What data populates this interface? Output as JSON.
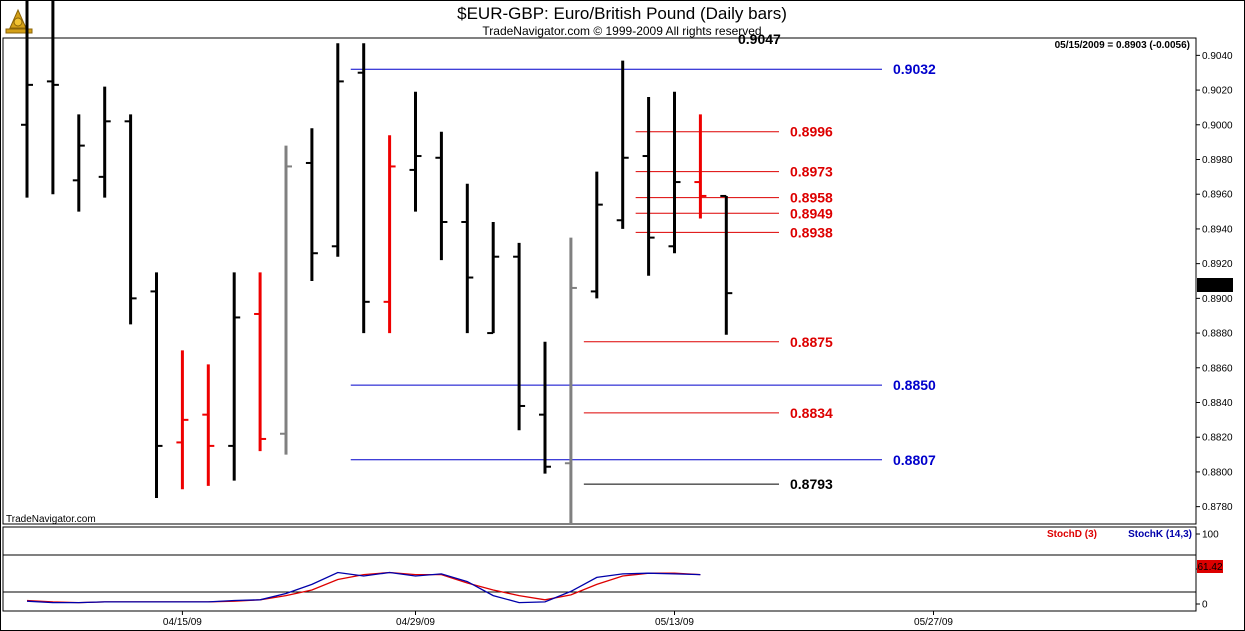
{
  "header": {
    "title": "$EUR-GBP:  Euro/British Pound  (Daily bars)",
    "subtitle": "TradeNavigator.com © 1999-2009 All rights reserved",
    "date_readout": "05/15/2009 = 0.8903 (-0.0056)",
    "watermark": "TradeNavigator.com",
    "cut_off_label": "0.9047"
  },
  "colors": {
    "up": "#000000",
    "down": "#ee0000",
    "neutral": "#808080",
    "blue_level": "#0000cc",
    "red_level": "#dd0000",
    "black_level": "#000000",
    "stochD": "#dd0000",
    "stochK": "#0000aa"
  },
  "chart_data": [
    {
      "type": "bar",
      "subtype": "ohlc",
      "title": "$EUR-GBP:  Euro/British Pound  (Daily bars)",
      "ylim": [
        0.877,
        0.905
      ],
      "y_ticks": [
        "0.9040",
        "0.9020",
        "0.9000",
        "0.8980",
        "0.8960",
        "0.8940",
        "0.8920",
        "0.8900",
        "0.8880",
        "0.8860",
        "0.8840",
        "0.8820",
        "0.8800",
        "0.8780"
      ],
      "x_ticks": [
        {
          "label": "04/15/09",
          "bar": 6
        },
        {
          "label": "04/29/09",
          "bar": 15
        },
        {
          "label": "05/13/09",
          "bar": 25
        },
        {
          "label": "05/27/09",
          "bar": 35
        }
      ],
      "last_value_label": "0.8903",
      "bars": [
        {
          "o": 0.9,
          "h": 0.9072,
          "l": 0.8958,
          "c": 0.9023,
          "color": "up"
        },
        {
          "o": 0.9025,
          "h": 0.9072,
          "l": 0.896,
          "c": 0.9023,
          "color": "up"
        },
        {
          "o": 0.8968,
          "h": 0.9006,
          "l": 0.895,
          "c": 0.8988,
          "color": "up"
        },
        {
          "o": 0.897,
          "h": 0.9022,
          "l": 0.8958,
          "c": 0.9002,
          "color": "up"
        },
        {
          "o": 0.9002,
          "h": 0.9006,
          "l": 0.8885,
          "c": 0.89,
          "color": "up"
        },
        {
          "o": 0.8904,
          "h": 0.8915,
          "l": 0.8785,
          "c": 0.8815,
          "color": "up"
        },
        {
          "o": 0.8817,
          "h": 0.887,
          "l": 0.879,
          "c": 0.883,
          "color": "down"
        },
        {
          "o": 0.8833,
          "h": 0.8862,
          "l": 0.8792,
          "c": 0.8815,
          "color": "down"
        },
        {
          "o": 0.8815,
          "h": 0.8915,
          "l": 0.8795,
          "c": 0.8889,
          "color": "up"
        },
        {
          "o": 0.8891,
          "h": 0.8915,
          "l": 0.8812,
          "c": 0.8819,
          "color": "down"
        },
        {
          "o": 0.8822,
          "h": 0.8988,
          "l": 0.881,
          "c": 0.8976,
          "color": "neutral"
        },
        {
          "o": 0.8978,
          "h": 0.8998,
          "l": 0.891,
          "c": 0.8926,
          "color": "up"
        },
        {
          "o": 0.893,
          "h": 0.9047,
          "l": 0.8924,
          "c": 0.9025,
          "color": "up"
        },
        {
          "o": 0.903,
          "h": 0.9047,
          "l": 0.888,
          "c": 0.8898,
          "color": "up"
        },
        {
          "o": 0.8898,
          "h": 0.8994,
          "l": 0.888,
          "c": 0.8976,
          "color": "down"
        },
        {
          "o": 0.8974,
          "h": 0.9019,
          "l": 0.895,
          "c": 0.8982,
          "color": "up"
        },
        {
          "o": 0.8981,
          "h": 0.8996,
          "l": 0.8922,
          "c": 0.8944,
          "color": "up"
        },
        {
          "o": 0.8944,
          "h": 0.8966,
          "l": 0.888,
          "c": 0.8912,
          "color": "up"
        },
        {
          "o": 0.888,
          "h": 0.8944,
          "l": 0.888,
          "c": 0.8924,
          "color": "up"
        },
        {
          "o": 0.8924,
          "h": 0.8932,
          "l": 0.8824,
          "c": 0.8838,
          "color": "up"
        },
        {
          "o": 0.8833,
          "h": 0.8875,
          "l": 0.8799,
          "c": 0.8803,
          "color": "up"
        },
        {
          "o": 0.8805,
          "h": 0.8935,
          "l": 0.877,
          "c": 0.8906,
          "color": "neutral"
        },
        {
          "o": 0.8904,
          "h": 0.8973,
          "l": 0.89,
          "c": 0.8954,
          "color": "up"
        },
        {
          "o": 0.8945,
          "h": 0.9037,
          "l": 0.894,
          "c": 0.8981,
          "color": "up"
        },
        {
          "o": 0.8982,
          "h": 0.9016,
          "l": 0.8913,
          "c": 0.8935,
          "color": "up"
        },
        {
          "o": 0.893,
          "h": 0.9019,
          "l": 0.8926,
          "c": 0.8967,
          "color": "up"
        },
        {
          "o": 0.8967,
          "h": 0.9006,
          "l": 0.8946,
          "c": 0.8959,
          "color": "down"
        },
        {
          "o": 0.8959,
          "h": 0.8959,
          "l": 0.8879,
          "c": 0.8903,
          "color": "up"
        }
      ],
      "levels": [
        {
          "value": 0.9032,
          "label": "0.9032",
          "color": "blue",
          "from_bar": 12.5
        },
        {
          "value": 0.8996,
          "label": "0.8996",
          "color": "red",
          "from_bar": 23.5
        },
        {
          "value": 0.8973,
          "label": "0.8973",
          "color": "red",
          "from_bar": 23.5
        },
        {
          "value": 0.8958,
          "label": "0.8958",
          "color": "red",
          "from_bar": 23.5
        },
        {
          "value": 0.8949,
          "label": "0.8949",
          "color": "red",
          "from_bar": 23.5
        },
        {
          "value": 0.8938,
          "label": "0.8938",
          "color": "red",
          "from_bar": 23.5
        },
        {
          "value": 0.8875,
          "label": "0.8875",
          "color": "red",
          "from_bar": 21.5
        },
        {
          "value": 0.885,
          "label": "0.8850",
          "color": "blue",
          "from_bar": 12.5
        },
        {
          "value": 0.8834,
          "label": "0.8834",
          "color": "red",
          "from_bar": 21.5
        },
        {
          "value": 0.8807,
          "label": "0.8807",
          "color": "blue",
          "from_bar": 12.5
        },
        {
          "value": 0.8793,
          "label": "0.8793",
          "color": "black",
          "from_bar": 21.5
        }
      ]
    },
    {
      "type": "line",
      "title": "",
      "ylim": [
        -10,
        110
      ],
      "y_ticks": [
        "100",
        "50",
        "0"
      ],
      "series": [
        {
          "name": "StochD (3)",
          "color": "stochD",
          "values": [
            5,
            3,
            2,
            3,
            3,
            3,
            3,
            3,
            4,
            6,
            12,
            20,
            35,
            42,
            45,
            42,
            42,
            30,
            20,
            12,
            6,
            13,
            28,
            40,
            44,
            44,
            42
          ]
        },
        {
          "name": "StochK (14,3)",
          "color": "stochK",
          "values": [
            4,
            2,
            2,
            3,
            3,
            3,
            3,
            3,
            5,
            6,
            15,
            28,
            45,
            40,
            45,
            40,
            43,
            32,
            12,
            2,
            3,
            18,
            38,
            43,
            44,
            43,
            42
          ]
        }
      ],
      "last_value_label": "61.42"
    }
  ]
}
